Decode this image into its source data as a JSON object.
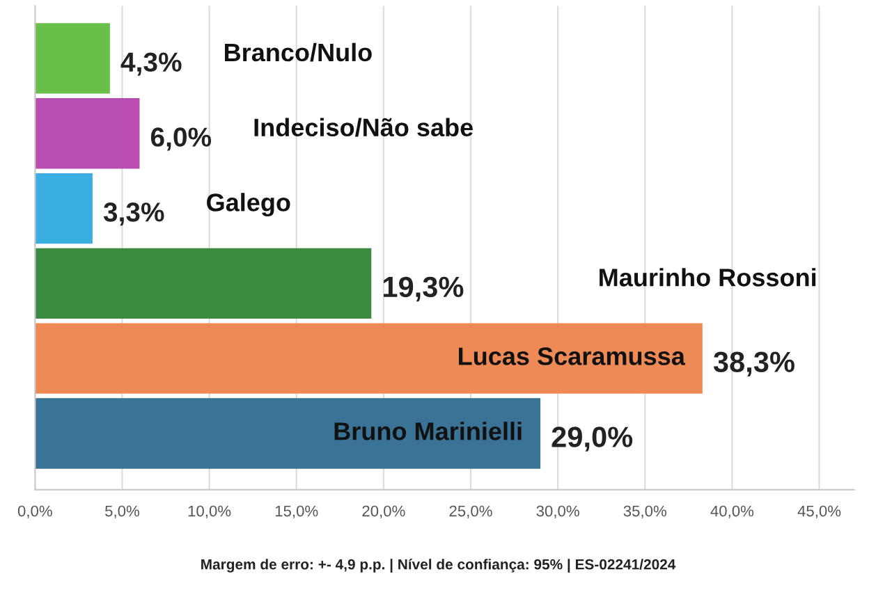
{
  "chart_data": {
    "type": "bar",
    "orientation": "horizontal",
    "categories": [
      "Branco/Nulo",
      "Indeciso/Não sabe",
      "Galego",
      "Maurinho Rossoni",
      "Lucas Scaramussa",
      "Bruno Marinielli"
    ],
    "values": [
      4.3,
      6.0,
      3.3,
      19.3,
      38.3,
      29.0
    ],
    "colors": [
      "#6abf4b",
      "#b94eb0",
      "#3aaee0",
      "#3c8a40",
      "#ee8a55",
      "#3a7396"
    ],
    "value_labels": [
      "4,3%",
      "6,0%",
      "3,3%",
      "19,3%",
      "38,3%",
      "29,0%"
    ],
    "xlim": [
      0,
      47
    ],
    "xticks": [
      {
        "value": 0,
        "label": "0,0%"
      },
      {
        "value": 5,
        "label": "5,0%"
      },
      {
        "value": 10,
        "label": "10,0%"
      },
      {
        "value": 15,
        "label": "15,0%"
      },
      {
        "value": 20,
        "label": "20,0%"
      },
      {
        "value": 25,
        "label": "25,0%"
      },
      {
        "value": 30,
        "label": "30,0%"
      },
      {
        "value": 35,
        "label": "35,0%"
      },
      {
        "value": 40,
        "label": "40,0%"
      },
      {
        "value": 45,
        "label": "45,0%"
      }
    ],
    "grid": "x",
    "annotations": [
      "Margem de erro: +- 4,9 p.p. | Nível de confiança: 95% | ES-02241/2024"
    ]
  }
}
